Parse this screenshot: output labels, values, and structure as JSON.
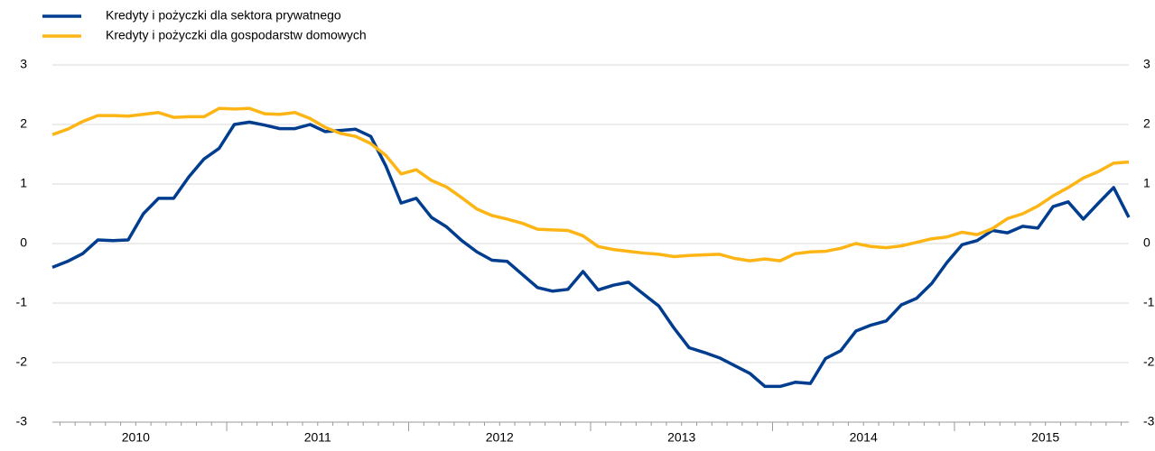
{
  "chart_data": {
    "type": "line",
    "categories": [
      null,
      null,
      null,
      null,
      null,
      null,
      null,
      null,
      null,
      null,
      null,
      null,
      null,
      null,
      null,
      null,
      null,
      null,
      null,
      null,
      null,
      null,
      null,
      null,
      null,
      null,
      null,
      null,
      null,
      null,
      null,
      null,
      null,
      null,
      null,
      null,
      null,
      null,
      null,
      null,
      null,
      null,
      null,
      null,
      null,
      null,
      null,
      null,
      null,
      null,
      null,
      null,
      null,
      null,
      null,
      null,
      null,
      null,
      null,
      null,
      null,
      null,
      null,
      null,
      null,
      null,
      null,
      null,
      null,
      null,
      null,
      null
    ],
    "year_labels": [
      "2010",
      "2011",
      "2012",
      "2013",
      "2014",
      "2015"
    ],
    "series": [
      {
        "name": "Kredyty i pożyczki dla sektora prywatnego",
        "color": "#003d8f",
        "values": [
          -0.4,
          -0.3,
          -0.17,
          0.06,
          0.05,
          0.06,
          0.5,
          0.76,
          0.76,
          1.12,
          1.42,
          1.6,
          2.0,
          2.04,
          1.99,
          1.93,
          1.93,
          2.0,
          1.88,
          1.9,
          1.92,
          1.8,
          1.3,
          0.68,
          0.76,
          0.44,
          0.28,
          0.05,
          -0.14,
          -0.28,
          -0.3,
          -0.52,
          -0.74,
          -0.8,
          -0.77,
          -0.47,
          -0.78,
          -0.7,
          -0.65,
          -0.85,
          -1.05,
          -1.42,
          -1.75,
          -1.83,
          -1.92,
          -2.05,
          -2.18,
          -2.4,
          -2.4,
          -2.33,
          -2.35,
          -1.93,
          -1.8,
          -1.47,
          -1.37,
          -1.3,
          -1.03,
          -0.92,
          -0.67,
          -0.32,
          -0.02,
          0.05,
          0.22,
          0.18,
          0.29,
          0.26,
          0.62,
          0.7,
          0.41,
          0.68,
          0.94,
          0.44
        ]
      },
      {
        "name": "Kredyty i pożyczki dla gospodarstw domowych",
        "color": "#fdb515",
        "values": [
          1.83,
          1.92,
          2.05,
          2.15,
          2.15,
          2.14,
          2.17,
          2.2,
          2.12,
          2.13,
          2.13,
          2.27,
          2.26,
          2.27,
          2.18,
          2.17,
          2.2,
          2.1,
          1.95,
          1.85,
          1.8,
          1.68,
          1.48,
          1.17,
          1.24,
          1.06,
          0.95,
          0.77,
          0.58,
          0.47,
          0.41,
          0.34,
          0.24,
          0.23,
          0.22,
          0.13,
          -0.05,
          -0.1,
          -0.13,
          -0.16,
          -0.18,
          -0.22,
          -0.2,
          -0.19,
          -0.18,
          -0.25,
          -0.29,
          -0.26,
          -0.29,
          -0.17,
          -0.14,
          -0.13,
          -0.08,
          0.0,
          -0.05,
          -0.07,
          -0.04,
          0.02,
          0.08,
          0.11,
          0.19,
          0.15,
          0.25,
          0.42,
          0.5,
          0.63,
          0.8,
          0.94,
          1.1,
          1.21,
          1.35,
          1.37
        ]
      }
    ],
    "ylim": [
      -3,
      3
    ],
    "yticks": [
      -3,
      -2,
      -1,
      0,
      1,
      2,
      3
    ],
    "grid": true,
    "legend": "top-left"
  }
}
